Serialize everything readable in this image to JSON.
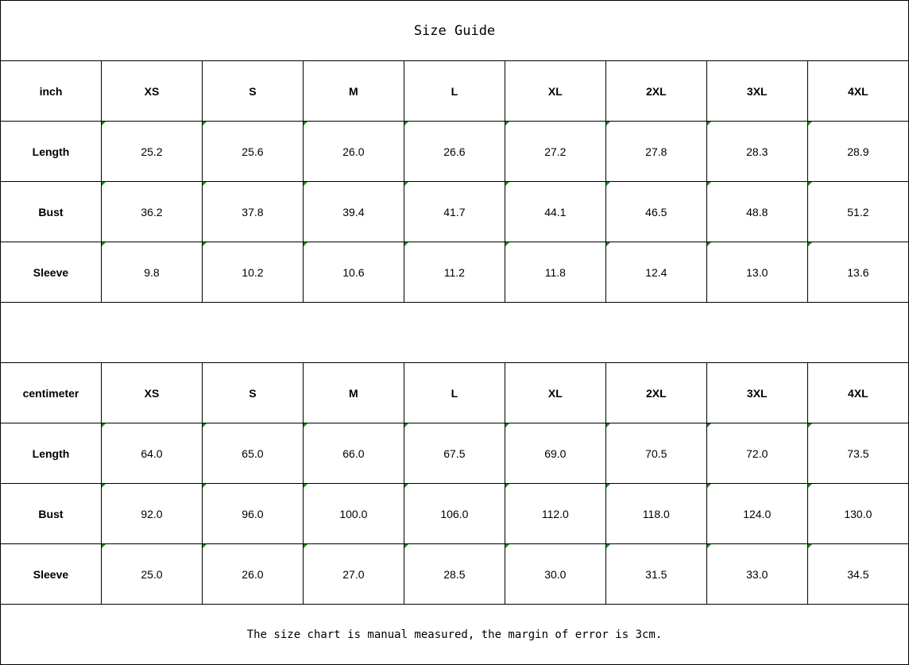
{
  "title": "Size Guide",
  "sizes": [
    "XS",
    "S",
    "M",
    "L",
    "XL",
    "2XL",
    "3XL",
    "4XL"
  ],
  "inch": {
    "unit": "inch",
    "rows": [
      {
        "label": "Length",
        "values": [
          "25.2",
          "25.6",
          "26.0",
          "26.6",
          "27.2",
          "27.8",
          "28.3",
          "28.9"
        ]
      },
      {
        "label": "Bust",
        "values": [
          "36.2",
          "37.8",
          "39.4",
          "41.7",
          "44.1",
          "46.5",
          "48.8",
          "51.2"
        ]
      },
      {
        "label": "Sleeve",
        "values": [
          "9.8",
          "10.2",
          "10.6",
          "11.2",
          "11.8",
          "12.4",
          "13.0",
          "13.6"
        ]
      }
    ]
  },
  "centimeter": {
    "unit": "centimeter",
    "rows": [
      {
        "label": "Length",
        "values": [
          "64.0",
          "65.0",
          "66.0",
          "67.5",
          "69.0",
          "70.5",
          "72.0",
          "73.5"
        ]
      },
      {
        "label": "Bust",
        "values": [
          "92.0",
          "96.0",
          "100.0",
          "106.0",
          "112.0",
          "118.0",
          "124.0",
          "130.0"
        ]
      },
      {
        "label": "Sleeve",
        "values": [
          "25.0",
          "26.0",
          "27.0",
          "28.5",
          "30.0",
          "31.5",
          "33.0",
          "34.5"
        ]
      }
    ]
  },
  "note": "The size chart is manual measured, the margin of error is 3cm.",
  "colors": {
    "cell_marker": "#1a8a1a",
    "border": "#000000"
  }
}
